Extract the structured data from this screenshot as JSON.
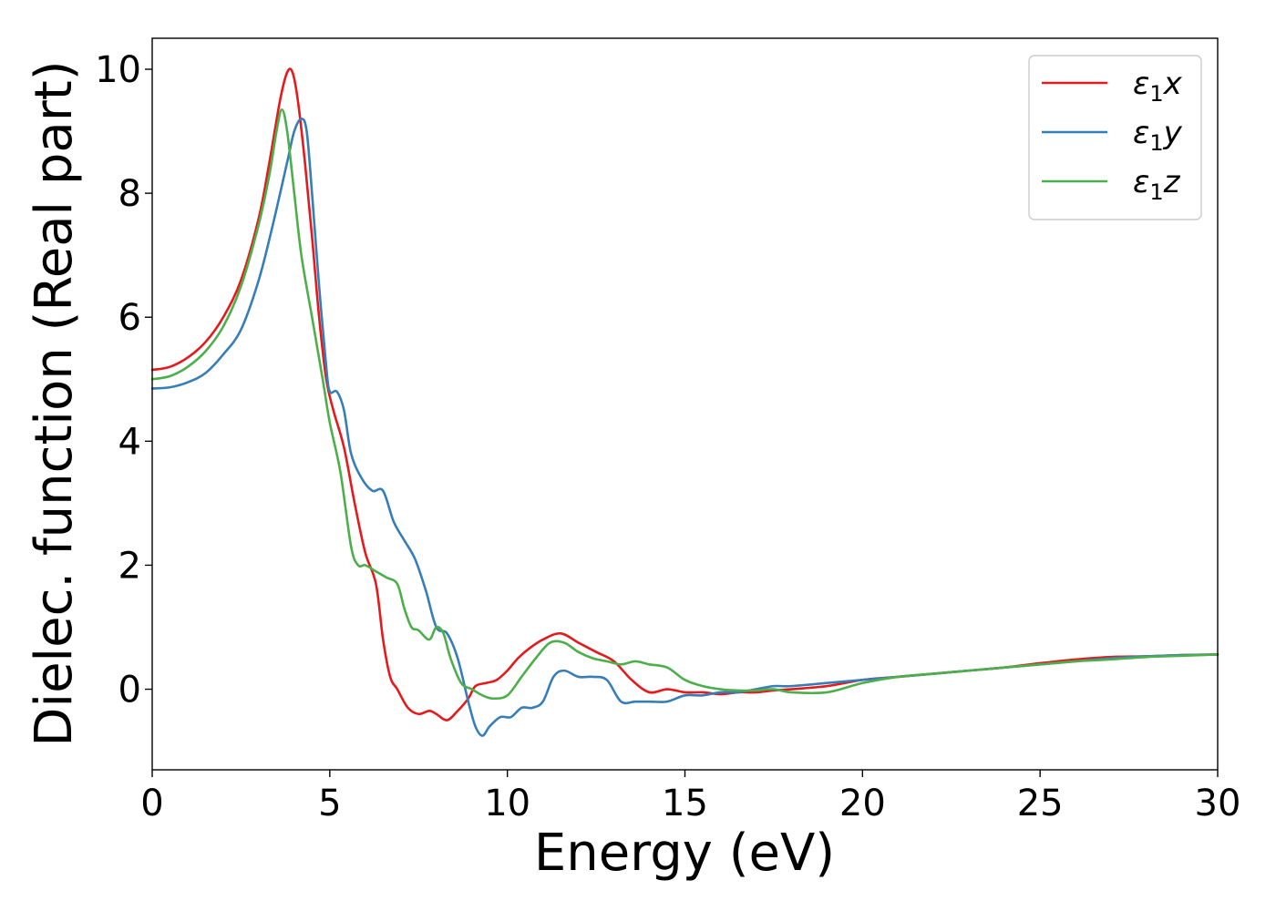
{
  "chart_data": {
    "type": "line",
    "title": "",
    "xlabel": "Energy (eV)",
    "ylabel": "Dielec. function (Real part)",
    "xlim": [
      0,
      30
    ],
    "ylim": [
      -1.3,
      10.5
    ],
    "xticks": [
      0,
      5,
      10,
      15,
      20,
      25,
      30
    ],
    "yticks": [
      0,
      2,
      4,
      6,
      8,
      10
    ],
    "grid": false,
    "legend": "top-right",
    "series": [
      {
        "name": "ε₁x",
        "label_base": "ε",
        "label_sub": "1",
        "label_tail": "x",
        "color": "#e41a1c",
        "x": [
          0,
          0.5,
          1,
          1.5,
          2,
          2.5,
          3,
          3.3,
          3.6,
          3.8,
          3.95,
          4.1,
          4.3,
          4.5,
          4.7,
          4.9,
          5.1,
          5.4,
          5.7,
          6.0,
          6.3,
          6.5,
          6.7,
          6.9,
          7.2,
          7.5,
          7.8,
          8.0,
          8.3,
          8.6,
          8.9,
          9.1,
          9.4,
          9.7,
          10.0,
          10.3,
          10.6,
          11.0,
          11.5,
          12.0,
          12.5,
          13.0,
          13.5,
          14.0,
          14.5,
          15.0,
          15.5,
          16.0,
          16.5,
          17.0,
          17.5,
          18.0,
          19.0,
          20.0,
          21.0,
          22.0,
          23.0,
          24.0,
          25.0,
          26.0,
          27.0,
          28.0,
          29.0,
          30.0
        ],
        "values": [
          5.15,
          5.2,
          5.35,
          5.6,
          6.0,
          6.6,
          7.6,
          8.5,
          9.5,
          9.95,
          9.95,
          9.5,
          8.5,
          7.3,
          6.0,
          5.0,
          4.5,
          3.9,
          3.0,
          2.2,
          1.7,
          0.8,
          0.2,
          0.0,
          -0.3,
          -0.4,
          -0.35,
          -0.4,
          -0.5,
          -0.35,
          -0.15,
          0.05,
          0.1,
          0.15,
          0.3,
          0.5,
          0.65,
          0.8,
          0.9,
          0.75,
          0.6,
          0.45,
          0.15,
          -0.05,
          0.0,
          -0.05,
          -0.05,
          -0.08,
          -0.05,
          -0.05,
          -0.02,
          0.0,
          0.05,
          0.15,
          0.2,
          0.25,
          0.3,
          0.35,
          0.42,
          0.48,
          0.52,
          0.53,
          0.55,
          0.56
        ]
      },
      {
        "name": "ε₁y",
        "label_base": "ε",
        "label_sub": "1",
        "label_tail": "y",
        "color": "#377eb8",
        "x": [
          0,
          0.5,
          1,
          1.5,
          2,
          2.5,
          3,
          3.4,
          3.8,
          4.0,
          4.2,
          4.35,
          4.5,
          4.7,
          4.9,
          5.0,
          5.2,
          5.4,
          5.6,
          5.9,
          6.2,
          6.5,
          6.8,
          7.1,
          7.4,
          7.7,
          8.0,
          8.3,
          8.6,
          8.9,
          9.1,
          9.3,
          9.5,
          9.8,
          10.1,
          10.4,
          10.7,
          11.0,
          11.3,
          11.6,
          12.0,
          12.4,
          12.8,
          13.2,
          13.6,
          14.0,
          14.5,
          15.0,
          15.5,
          16.0,
          16.5,
          17.0,
          17.5,
          18.0,
          19.0,
          20.0,
          21.0,
          22.0,
          23.0,
          24.0,
          25.0,
          26.0,
          27.0,
          28.0,
          29.0,
          30.0
        ],
        "values": [
          4.85,
          4.87,
          4.95,
          5.1,
          5.4,
          5.8,
          6.6,
          7.5,
          8.5,
          9.0,
          9.2,
          9.0,
          8.0,
          6.5,
          5.2,
          4.8,
          4.8,
          4.5,
          3.8,
          3.4,
          3.2,
          3.2,
          2.7,
          2.4,
          2.1,
          1.6,
          1.0,
          0.9,
          0.5,
          -0.2,
          -0.6,
          -0.75,
          -0.6,
          -0.45,
          -0.45,
          -0.3,
          -0.3,
          -0.2,
          0.2,
          0.3,
          0.2,
          0.2,
          0.15,
          -0.2,
          -0.2,
          -0.2,
          -0.2,
          -0.1,
          -0.1,
          -0.05,
          -0.05,
          0.0,
          0.05,
          0.05,
          0.1,
          0.15,
          0.2,
          0.25,
          0.3,
          0.35,
          0.4,
          0.45,
          0.5,
          0.53,
          0.55,
          0.56
        ]
      },
      {
        "name": "ε₁z",
        "label_base": "ε",
        "label_sub": "1",
        "label_tail": "z",
        "color": "#4daf4a",
        "x": [
          0,
          0.5,
          1,
          1.5,
          2,
          2.5,
          3,
          3.3,
          3.5,
          3.65,
          3.8,
          4.0,
          4.2,
          4.5,
          4.8,
          5.0,
          5.3,
          5.6,
          5.8,
          6.0,
          6.3,
          6.6,
          6.9,
          7.1,
          7.3,
          7.5,
          7.8,
          8.0,
          8.2,
          8.4,
          8.7,
          9.0,
          9.3,
          9.6,
          10.0,
          10.4,
          10.8,
          11.2,
          11.6,
          12.0,
          12.4,
          12.8,
          13.2,
          13.6,
          14.0,
          14.5,
          15.0,
          15.5,
          16.0,
          16.5,
          17.0,
          17.5,
          18.0,
          19.0,
          20.0,
          21.0,
          22.0,
          23.0,
          24.0,
          25.0,
          26.0,
          27.0,
          28.0,
          29.0,
          30.0
        ],
        "values": [
          5.0,
          5.05,
          5.2,
          5.45,
          5.85,
          6.5,
          7.5,
          8.3,
          9.0,
          9.35,
          9.0,
          8.0,
          7.0,
          6.0,
          5.0,
          4.3,
          3.5,
          2.3,
          2.0,
          2.0,
          1.9,
          1.8,
          1.7,
          1.3,
          1.0,
          0.95,
          0.8,
          1.0,
          0.9,
          0.5,
          0.1,
          0.0,
          -0.1,
          -0.15,
          -0.1,
          0.2,
          0.5,
          0.75,
          0.75,
          0.6,
          0.5,
          0.45,
          0.4,
          0.45,
          0.4,
          0.35,
          0.15,
          0.05,
          0.0,
          -0.02,
          -0.02,
          0.0,
          -0.05,
          -0.05,
          0.1,
          0.2,
          0.25,
          0.3,
          0.35,
          0.4,
          0.45,
          0.48,
          0.52,
          0.54,
          0.56
        ]
      }
    ]
  }
}
